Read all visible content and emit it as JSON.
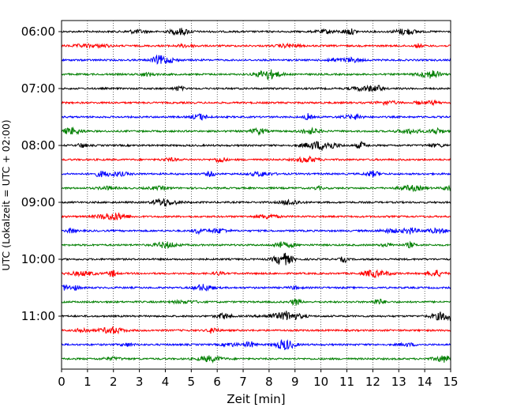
{
  "chart_data": {
    "type": "line",
    "title": "",
    "xlabel": "Zeit  [min]",
    "ylabel": "UTC (Lokalzeit = UTC + 02:00)",
    "xlim": [
      0,
      15
    ],
    "x_ticks": [
      "0",
      "1",
      "2",
      "3",
      "4",
      "5",
      "6",
      "7",
      "8",
      "9",
      "10",
      "11",
      "12",
      "13",
      "14",
      "15"
    ],
    "y_ticks": [
      "06:00",
      "07:00",
      "08:00",
      "09:00",
      "10:00",
      "11:00"
    ],
    "grid": "vertical dotted lines at each minute",
    "colors": [
      "#000000",
      "#ff0000",
      "#0000ff",
      "#007f00"
    ],
    "series": [
      {
        "start": "06:00",
        "color": "#000000"
      },
      {
        "start": "06:15",
        "color": "#ff0000"
      },
      {
        "start": "06:30",
        "color": "#0000ff"
      },
      {
        "start": "06:45",
        "color": "#007f00"
      },
      {
        "start": "07:00",
        "color": "#000000"
      },
      {
        "start": "07:15",
        "color": "#ff0000"
      },
      {
        "start": "07:30",
        "color": "#0000ff"
      },
      {
        "start": "07:45",
        "color": "#007f00"
      },
      {
        "start": "08:00",
        "color": "#000000"
      },
      {
        "start": "08:15",
        "color": "#ff0000"
      },
      {
        "start": "08:30",
        "color": "#0000ff"
      },
      {
        "start": "08:45",
        "color": "#007f00"
      },
      {
        "start": "09:00",
        "color": "#000000"
      },
      {
        "start": "09:15",
        "color": "#ff0000"
      },
      {
        "start": "09:30",
        "color": "#0000ff"
      },
      {
        "start": "09:45",
        "color": "#007f00"
      },
      {
        "start": "10:00",
        "color": "#000000"
      },
      {
        "start": "10:15",
        "color": "#ff0000"
      },
      {
        "start": "10:30",
        "color": "#0000ff"
      },
      {
        "start": "10:45",
        "color": "#007f00"
      },
      {
        "start": "11:00",
        "color": "#000000"
      },
      {
        "start": "11:15",
        "color": "#ff0000"
      },
      {
        "start": "11:30",
        "color": "#0000ff"
      },
      {
        "start": "11:45",
        "color": "#007f00"
      }
    ]
  }
}
